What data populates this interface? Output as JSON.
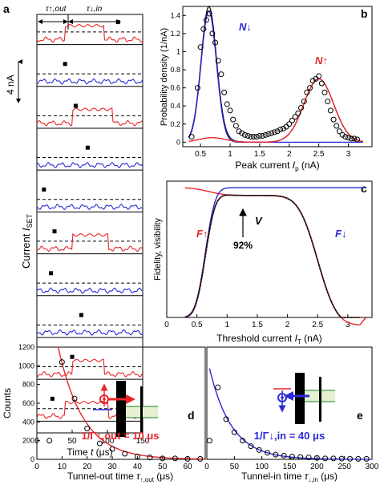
{
  "colors": {
    "red": "#e8262a",
    "blue": "#2a2ad6",
    "black": "#000000",
    "green": "#3c9b3c",
    "greenfill": "#e6f0d2"
  },
  "panels": {
    "a": {
      "letter": "a",
      "tau_out_label": "τ↑,out",
      "tau_in_label": "τ↓,in",
      "scale_label": "4 nA",
      "ylabel_prefix": "Current ",
      "ylabel_sym": "I",
      "ylabel_sub": "SET",
      "xlabel_prefix": "Time ",
      "xlabel_sym": "t",
      "xlabel_unit": " (μs)",
      "xticks": [
        "0",
        "50",
        "100",
        "150"
      ],
      "xlim": [
        0,
        150
      ],
      "traces": [
        {
          "color": "red",
          "marker_t": 115
        },
        {
          "color": "blue",
          "marker_t": 40
        },
        {
          "color": "red",
          "marker_t": 55
        },
        {
          "color": "blue",
          "marker_t": 72
        },
        {
          "color": "blue",
          "marker_t": 10
        },
        {
          "color": "red",
          "marker_t": 25
        },
        {
          "color": "blue",
          "marker_t": 20
        },
        {
          "color": "blue",
          "marker_t": 63
        },
        {
          "color": "red",
          "marker_t": 50
        },
        {
          "color": "red",
          "marker_t": 22
        }
      ]
    },
    "b": {
      "letter": "b",
      "ylabel": "Probability density (1/nA)",
      "xlabel_prefix": "Peak current ",
      "xlabel_sym": "I",
      "xlabel_sub": "p",
      "xlabel_unit": " (nA)",
      "xticks": [
        "0.5",
        "1",
        "1.5",
        "2",
        "2.5",
        "3"
      ],
      "yticks": [
        "0",
        "0.2",
        "0.4",
        "0.6",
        "0.8",
        "1",
        "1.2",
        "1.4"
      ],
      "xlim": [
        0.2,
        3.4
      ],
      "ylim": [
        -0.05,
        1.5
      ],
      "label_down": "N↓",
      "label_up": "N↑",
      "data_x": [
        0.35,
        0.45,
        0.5,
        0.55,
        0.6,
        0.65,
        0.7,
        0.75,
        0.8,
        0.85,
        0.9,
        0.95,
        1.0,
        1.05,
        1.1,
        1.15,
        1.2,
        1.25,
        1.3,
        1.35,
        1.4,
        1.45,
        1.5,
        1.55,
        1.6,
        1.65,
        1.7,
        1.75,
        1.8,
        1.85,
        1.9,
        1.95,
        2.0,
        2.05,
        2.1,
        2.15,
        2.2,
        2.25,
        2.3,
        2.35,
        2.4,
        2.45,
        2.5,
        2.55,
        2.6,
        2.65,
        2.7,
        2.75,
        2.8,
        2.85,
        2.9,
        2.95,
        3.0,
        3.05,
        3.1,
        3.15
      ],
      "data_y": [
        0.06,
        0.6,
        1.05,
        1.25,
        1.35,
        1.42,
        1.2,
        1.1,
        0.9,
        0.75,
        0.55,
        0.42,
        0.35,
        0.25,
        0.18,
        0.12,
        0.1,
        0.08,
        0.07,
        0.06,
        0.06,
        0.06,
        0.07,
        0.07,
        0.08,
        0.09,
        0.1,
        0.11,
        0.12,
        0.14,
        0.15,
        0.17,
        0.2,
        0.24,
        0.28,
        0.32,
        0.38,
        0.45,
        0.55,
        0.6,
        0.68,
        0.7,
        0.73,
        0.65,
        0.55,
        0.45,
        0.35,
        0.25,
        0.18,
        0.12,
        0.08,
        0.06,
        0.05,
        0.04,
        0.04,
        0.03
      ],
      "blue_peak": {
        "mu": 0.64,
        "sigma": 0.13,
        "amp": 1.45
      },
      "red_peak": {
        "mu": 2.5,
        "sigma": 0.25,
        "amp": 0.7
      },
      "red_low_bump": {
        "mu": 0.7,
        "sigma": 0.22,
        "amp": 0.05
      }
    },
    "c": {
      "letter": "c",
      "ylabel": "Fidelity, visibility",
      "xlabel_prefix": "Threshold current ",
      "xlabel_sym": "I",
      "xlabel_sub": "T",
      "xlabel_unit": " (nA)",
      "xticks": [
        "0",
        "0.5",
        "1",
        "1.5",
        "2",
        "2.5",
        "3"
      ],
      "xlim": [
        0,
        3.4
      ],
      "ylim": [
        0,
        1.05
      ],
      "label_up": "F↑",
      "label_down": "F↓",
      "label_v": "V",
      "annotation": "92%"
    },
    "d": {
      "letter": "d",
      "ylabel": "Counts",
      "xlabel_prefix": "Tunnel-out time ",
      "xlabel_sym": "τ",
      "xlabel_sub": "↑,out",
      "xlabel_unit": " (μs)",
      "xticks": [
        "0",
        "10",
        "20",
        "30",
        "40",
        "50",
        "60"
      ],
      "yticks": [
        "0",
        "200",
        "400",
        "600",
        "800",
        "1000",
        "1200"
      ],
      "xlim": [
        0,
        67
      ],
      "ylim": [
        0,
        1200
      ],
      "fit_label": "1/Γ↑,out = 10 μs",
      "x": [
        5,
        10,
        15,
        20,
        25,
        30,
        35,
        40,
        45,
        50,
        55,
        60,
        65
      ],
      "y": [
        200,
        1040,
        650,
        330,
        170,
        110,
        60,
        30,
        20,
        10,
        10,
        5,
        5
      ],
      "fit": {
        "amp": 2800,
        "tau": 10
      }
    },
    "e": {
      "letter": "e",
      "xlabel_prefix": "Tunnel-in time ",
      "xlabel_sym": "τ",
      "xlabel_sub": "↓,in",
      "xlabel_unit": " (μs)",
      "xticks": [
        "0",
        "50",
        "100",
        "150",
        "200",
        "250",
        "300"
      ],
      "xlim": [
        0,
        300
      ],
      "ylim": [
        0,
        1200
      ],
      "fit_label": "1/Γ↓,in = 40 μs",
      "x": [
        5,
        20,
        35,
        50,
        65,
        80,
        95,
        110,
        125,
        140,
        155,
        170,
        185,
        200,
        215,
        230,
        245,
        260,
        275,
        290
      ],
      "y": [
        200,
        770,
        430,
        290,
        200,
        140,
        100,
        70,
        50,
        40,
        30,
        25,
        20,
        15,
        10,
        10,
        8,
        6,
        5,
        5
      ],
      "fit": {
        "amp": 1100,
        "tau": 40
      }
    }
  },
  "chart_data": [
    {
      "type": "line",
      "panel": "a",
      "xlabel": "Time t (μs)",
      "ylabel": "Current I_SET",
      "xlim": [
        0,
        150
      ],
      "series": [
        {
          "name": "",
          "values": [
            0,
            150
          ]
        }
      ],
      "annotations": [
        "τ↑,out",
        "τ↓,in",
        "4 nA"
      ]
    },
    {
      "type": "scatter",
      "panel": "b",
      "xlabel": "Peak current Ip (nA)",
      "ylabel": "Probability density (1/nA)",
      "xlim": [
        0.2,
        3.4
      ],
      "ylim": [
        0,
        1.5
      ],
      "series": [
        {
          "name": "N↓",
          "peak_x": 0.64,
          "peak_y": 1.45
        },
        {
          "name": "N↑",
          "peak_x": 2.5,
          "peak_y": 0.7
        }
      ]
    },
    {
      "type": "line",
      "panel": "c",
      "xlabel": "Threshold current IT (nA)",
      "ylabel": "Fidelity, visibility",
      "xlim": [
        0,
        3.4
      ],
      "ylim": [
        0,
        1
      ],
      "series": [
        {
          "name": "F↑"
        },
        {
          "name": "F↓"
        },
        {
          "name": "V",
          "max_x": 1.25,
          "max_y": 0.92
        }
      ],
      "annotations": [
        "92%"
      ]
    },
    {
      "type": "scatter",
      "panel": "d",
      "xlabel": "Tunnel-out time τ↑,out (μs)",
      "ylabel": "Counts",
      "xlim": [
        0,
        67
      ],
      "ylim": [
        0,
        1200
      ],
      "x": [
        5,
        10,
        15,
        20,
        25,
        30,
        35,
        40,
        45,
        50,
        55,
        60,
        65
      ],
      "values": [
        200,
        1040,
        650,
        330,
        170,
        110,
        60,
        30,
        20,
        10,
        10,
        5,
        5
      ],
      "annotations": [
        "1/Γ↑,out = 10 μs"
      ]
    },
    {
      "type": "scatter",
      "panel": "e",
      "xlabel": "Tunnel-in time τ↓,in (μs)",
      "ylabel": "Counts",
      "xlim": [
        0,
        300
      ],
      "ylim": [
        0,
        1200
      ],
      "x": [
        5,
        20,
        35,
        50,
        65,
        80,
        95,
        110,
        125,
        140,
        155,
        170,
        185,
        200,
        215,
        230,
        245,
        260,
        275,
        290
      ],
      "values": [
        200,
        770,
        430,
        290,
        200,
        140,
        100,
        70,
        50,
        40,
        30,
        25,
        20,
        15,
        10,
        10,
        8,
        6,
        5,
        5
      ],
      "annotations": [
        "1/Γ↓,in = 40 μs"
      ]
    }
  ]
}
